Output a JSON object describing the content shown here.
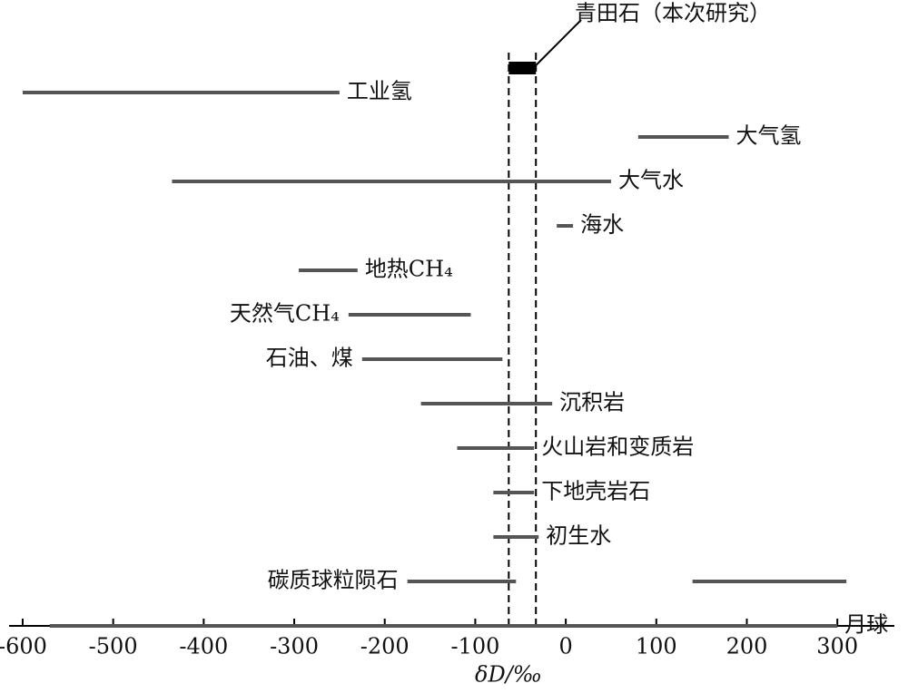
{
  "chart_data": {
    "type": "range",
    "x_label": "δD/‰",
    "highlight": {
      "name": "青田石（本次研究）",
      "range": [
        -63,
        -33
      ],
      "color": "#000000"
    },
    "rows": [
      {
        "name": "工业氢",
        "ranges": [
          [
            -600,
            -250
          ]
        ]
      },
      {
        "name": "大气氢",
        "ranges": [
          [
            80,
            180
          ]
        ]
      },
      {
        "name": "大气水",
        "ranges": [
          [
            -435,
            50
          ]
        ]
      },
      {
        "name": "海水",
        "ranges": [
          [
            -10,
            8
          ]
        ]
      },
      {
        "name": "地热CH₄",
        "ranges": [
          [
            -295,
            -230
          ]
        ]
      },
      {
        "name": "天然气CH₄",
        "ranges": [
          [
            -240,
            -105
          ]
        ]
      },
      {
        "name": "石油、煤",
        "ranges": [
          [
            -225,
            -70
          ]
        ]
      },
      {
        "name": "沉积岩",
        "ranges": [
          [
            -160,
            -15
          ]
        ]
      },
      {
        "name": "火山岩和变质岩",
        "ranges": [
          [
            -120,
            -35
          ]
        ]
      },
      {
        "name": "下地壳岩石",
        "ranges": [
          [
            -80,
            -35
          ]
        ]
      },
      {
        "name": "初生水",
        "ranges": [
          [
            -80,
            -30
          ]
        ]
      },
      {
        "name": "碳质球粒陨石",
        "ranges": [
          [
            -175,
            -55
          ],
          [
            140,
            310
          ]
        ]
      },
      {
        "name": "月球",
        "ranges": [
          [
            -570,
            300
          ]
        ]
      }
    ],
    "color": "#555555",
    "xlim": [
      -615,
      363
    ],
    "xticks": [
      -600,
      -500,
      -400,
      -300,
      -200,
      -100,
      0,
      100,
      200,
      300
    ]
  }
}
